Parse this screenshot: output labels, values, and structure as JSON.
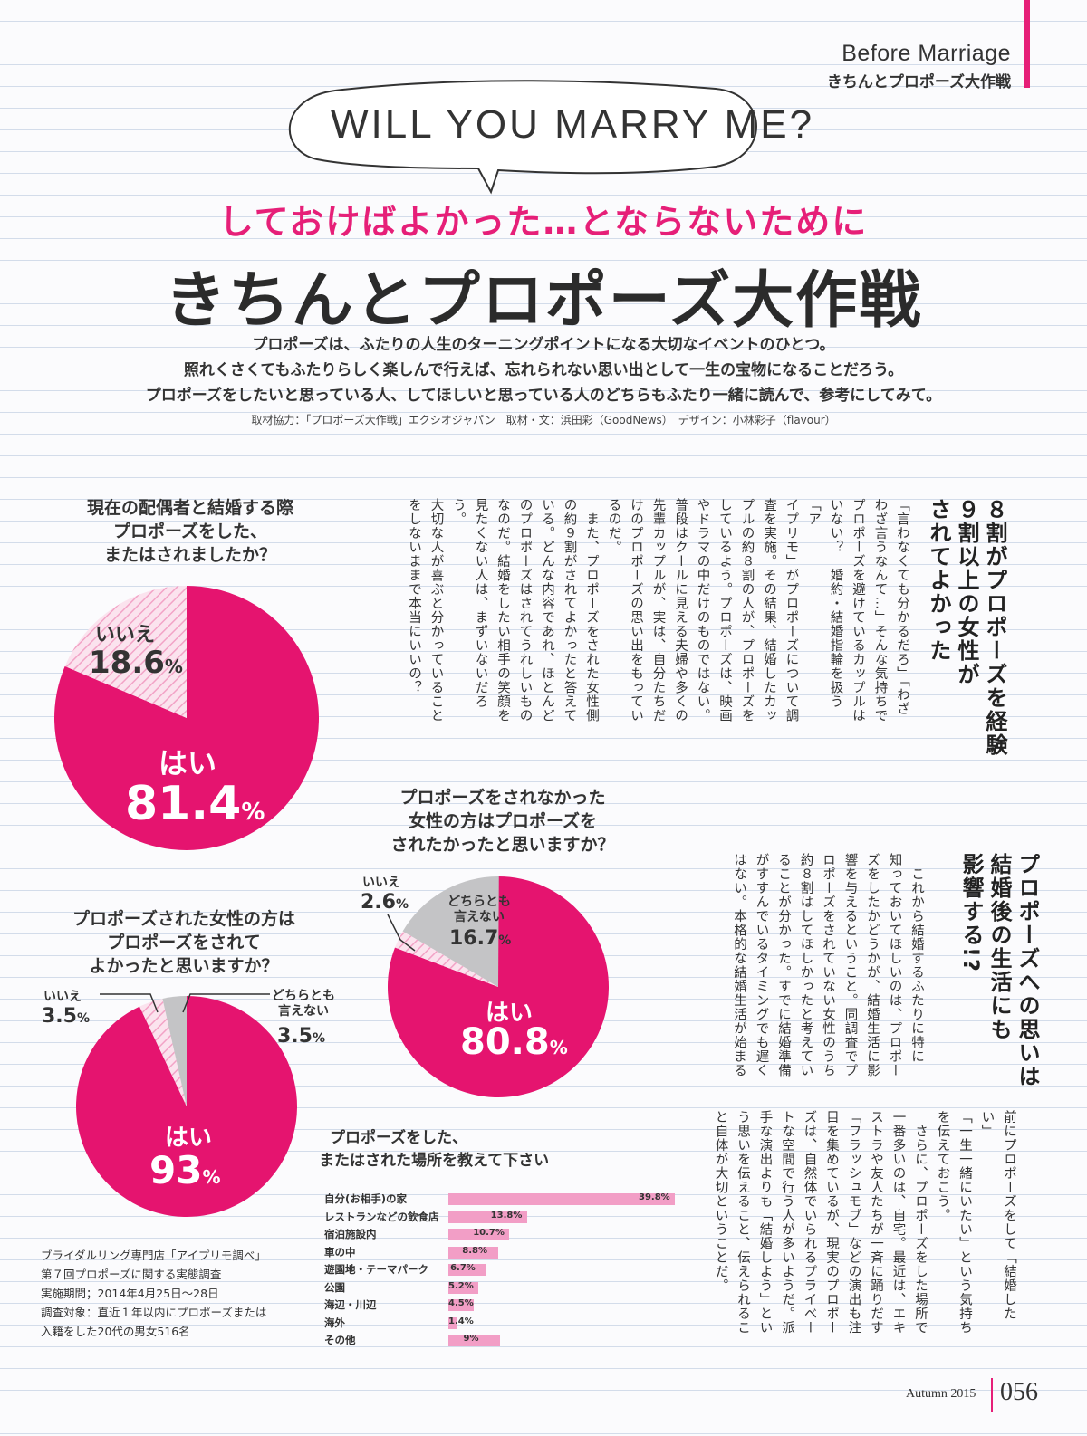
{
  "header": {
    "section_en": "Before Marriage",
    "section_jp": "きちんとプロポーズ大作戦"
  },
  "bubble": "WILL YOU MARRY ME?",
  "subtitle": "しておけばよかった…とならないために",
  "title": "きちんとプロポーズ大作戦",
  "lead": [
    "プロポーズは、ふたりの人生のターニングポイントになる大切なイベントのひとつ。",
    "照れくさくてもふたりらしく楽しんで行えば、忘れられない思い出として一生の宝物になることだろう。",
    "プロポーズをしたいと思っている人、してほしいと思っている人のどちらもふたり一緒に読んで、参考にしてみて。"
  ],
  "credit": "取材協力：「プロポーズ大作戦」エクシオジャパン　取材・文：浜田彩（GoodNews）　デザイン：小林彩子（flavour）",
  "pie1": {
    "question": [
      "現在の配偶者と結婚する際",
      "プロポーズをした、",
      "またはされましたか？"
    ],
    "yes_label": "はい",
    "yes_value": "81.4",
    "yes_pct": 81.4,
    "no_label": "いいえ",
    "no_value": "18.6",
    "no_pct": 18.6,
    "unit": "%"
  },
  "pie2": {
    "question": [
      "プロポーズされた女性の方は",
      "プロポーズをされて",
      "よかったと思いますか？"
    ],
    "yes_label": "はい",
    "yes_value": "93",
    "yes_pct": 93,
    "no_label": "いいえ",
    "no_value": "3.5",
    "no_pct": 3.5,
    "neutral_label": [
      "どちらとも",
      "言えない"
    ],
    "neutral_value": "3.5",
    "neutral_pct": 3.5,
    "unit": "%"
  },
  "pie3": {
    "question": [
      "プロポーズをされなかった",
      "女性の方はプロポーズを",
      "されたかったと思いますか？"
    ],
    "yes_label": "はい",
    "yes_value": "80.8",
    "yes_pct": 80.8,
    "no_label": "いいえ",
    "no_value": "2.6",
    "no_pct": 2.6,
    "neutral_label": [
      "どちらとも",
      "言えない"
    ],
    "neutral_value": "16.7",
    "neutral_pct": 16.7,
    "unit": "%"
  },
  "chart_data": {
    "type": "bar",
    "title": [
      "プロポーズをした、",
      "またはされた場所を教えて下さい"
    ],
    "categories": [
      "自分(お相手)の家",
      "レストランなどの飲食店",
      "宿泊施設内",
      "車の中",
      "遊園地・テーマパーク",
      "公園",
      "海辺・川辺",
      "海外",
      "その他"
    ],
    "values": [
      39.8,
      13.8,
      10.7,
      8.8,
      6.7,
      5.2,
      4.5,
      1.4,
      9
    ],
    "value_labels": [
      "39.8%",
      "13.8%",
      "10.7%",
      "8.8%",
      "6.7%",
      "5.2%",
      "4.5%",
      "1.4%",
      "9%"
    ],
    "orientation": "horizontal",
    "color": "#f29ec6"
  },
  "source": [
    "ブライダルリング専門店「アイプリモ調べ」",
    "第７回プロポーズに関する実態調査",
    "実施期間；2014年4月25日〜28日",
    "調査対象：直近１年以内にプロポーズまたは",
    "入籍をした20代の男女516名"
  ],
  "article1": {
    "heading": [
      "８割がプロポーズを経験",
      "９割以上の女性が",
      "されてよかった"
    ],
    "body": [
      "「言わなくても分かるだろ」「わざ",
      "わざ言うなんて…」そんな気持ちで",
      "プロポーズを避けているカップルは",
      "いない？　婚約・結婚指輪を扱う「ア",
      "イプリモ」がプロポーズについて調",
      "査を実施。その結果、結婚したカッ",
      "プルの約８割の人が、プロポーズを",
      "しているよう。プロポーズは、映画",
      "やドラマの中だけのものではない。",
      "普段はクールに見える夫婦や多くの",
      "先輩カップルが、実は、自分たちだ",
      "けのプロポーズの思い出をもってい",
      "るのだ。",
      "　また、プロポーズをされた女性側",
      "の約９割がされてよかったと答えて",
      "いる。どんな内容であれ、ほとんど",
      "のプロポーズはされてうれしいもの",
      "なのだ。結婚をしたい相手の笑顔を",
      "見たくない人は、まずいないだろう。",
      "大切な人が喜ぶと分かっていること",
      "をしないままで本当にいいの？"
    ]
  },
  "article2": {
    "heading": [
      "プロポーズへの思いは",
      "結婚後の生活にも",
      "影響する!?"
    ],
    "body": [
      "　これから結婚するふたりに特に",
      "知っておいてほしいのは、プロポー",
      "ズをしたかどうかが、結婚生活に影",
      "響を与えるということ。同調査でプ",
      "ロポーズをされていない女性のうち",
      "約８割はしてほしかったと考えてい",
      "ることが分かった。すでに結婚準備",
      "がすすんでいるタイミングでも遅く",
      "はない。本格的な結婚生活が始まる"
    ],
    "body2": [
      "前にプロポーズをして「結婚したい」",
      "「一生一緒にいたい」という気持ち",
      "を伝えておこう。",
      "　さらに、プロポーズをした場所で",
      "一番多いのは、自宅。最近は、エキ",
      "ストラや友人たちが一斉に踊りだす",
      "「フラッシュモブ」などの演出も注",
      "目を集めているが、現実のプロポー",
      "ズは、自然体でいられるプライベー",
      "トな空間で行う人が多いようだ。派",
      "手な演出よりも「結婚しよう」とい",
      "う思いを伝えること、伝えられるこ",
      "と自体が大切ということだ。"
    ]
  },
  "footer": {
    "season": "Autumn 2015",
    "page": "056"
  }
}
